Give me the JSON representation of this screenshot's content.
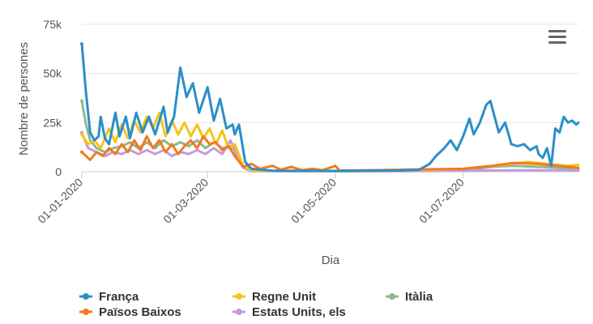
{
  "chart_data": {
    "type": "line",
    "xlabel": "Dia",
    "ylabel": "Nombre de persones",
    "x_start": "2020-01-01",
    "x_end": "2020-08-25",
    "ylim": [
      0,
      75000
    ],
    "y_ticks": [
      {
        "value": 0,
        "label": "0"
      },
      {
        "value": 25000,
        "label": "25k"
      },
      {
        "value": 50000,
        "label": "50k"
      },
      {
        "value": 75000,
        "label": "75k"
      }
    ],
    "x_ticks": [
      {
        "date": "2020-01-01",
        "label": "01-01-2020"
      },
      {
        "date": "2020-03-01",
        "label": "01-03-2020"
      },
      {
        "date": "2020-05-01",
        "label": "01-05-2020"
      },
      {
        "date": "2020-07-01",
        "label": "01-07-2020"
      }
    ],
    "grid": "horizontal",
    "legend_position": "bottom",
    "series": [
      {
        "name": "Itàlia",
        "color": "#8db88e",
        "points": [
          [
            "2020-01-01",
            36000
          ],
          [
            "2020-01-03",
            24000
          ],
          [
            "2020-01-05",
            16000
          ],
          [
            "2020-01-08",
            12000
          ],
          [
            "2020-01-12",
            10000
          ],
          [
            "2020-01-16",
            12000
          ],
          [
            "2020-01-20",
            13000
          ],
          [
            "2020-01-24",
            15000
          ],
          [
            "2020-01-28",
            12000
          ],
          [
            "2020-02-01",
            15000
          ],
          [
            "2020-02-05",
            12000
          ],
          [
            "2020-02-09",
            16000
          ],
          [
            "2020-02-13",
            13000
          ],
          [
            "2020-02-17",
            15000
          ],
          [
            "2020-02-21",
            13000
          ],
          [
            "2020-02-25",
            16000
          ],
          [
            "2020-02-29",
            12000
          ],
          [
            "2020-03-04",
            15000
          ],
          [
            "2020-03-08",
            12000
          ],
          [
            "2020-03-12",
            13000
          ],
          [
            "2020-03-15",
            10000
          ],
          [
            "2020-03-18",
            3000
          ],
          [
            "2020-03-22",
            800
          ],
          [
            "2020-04-01",
            400
          ],
          [
            "2020-05-01",
            300
          ],
          [
            "2020-06-01",
            500
          ],
          [
            "2020-06-20",
            700
          ],
          [
            "2020-07-05",
            1200
          ],
          [
            "2020-07-15",
            2500
          ],
          [
            "2020-07-25",
            3000
          ],
          [
            "2020-08-05",
            2500
          ],
          [
            "2020-08-15",
            2000
          ],
          [
            "2020-08-25",
            1500
          ]
        ]
      },
      {
        "name": "Estats Units, els",
        "color": "#c49ae0",
        "points": [
          [
            "2020-01-01",
            20000
          ],
          [
            "2020-01-04",
            12000
          ],
          [
            "2020-01-08",
            10000
          ],
          [
            "2020-01-12",
            8000
          ],
          [
            "2020-01-16",
            10000
          ],
          [
            "2020-01-20",
            9000
          ],
          [
            "2020-01-24",
            11000
          ],
          [
            "2020-01-28",
            9000
          ],
          [
            "2020-02-01",
            11000
          ],
          [
            "2020-02-05",
            9000
          ],
          [
            "2020-02-09",
            11000
          ],
          [
            "2020-02-13",
            8000
          ],
          [
            "2020-02-17",
            10000
          ],
          [
            "2020-02-21",
            9000
          ],
          [
            "2020-02-25",
            11000
          ],
          [
            "2020-02-29",
            9000
          ],
          [
            "2020-03-04",
            12000
          ],
          [
            "2020-03-08",
            9000
          ],
          [
            "2020-03-12",
            16000
          ],
          [
            "2020-03-15",
            8000
          ],
          [
            "2020-03-18",
            2000
          ],
          [
            "2020-03-22",
            300
          ],
          [
            "2020-05-01",
            200
          ],
          [
            "2020-06-01",
            300
          ],
          [
            "2020-07-01",
            500
          ],
          [
            "2020-08-01",
            800
          ],
          [
            "2020-08-25",
            600
          ]
        ]
      },
      {
        "name": "Regne Unit",
        "color": "#f5c518",
        "points": [
          [
            "2020-01-01",
            19000
          ],
          [
            "2020-01-04",
            14000
          ],
          [
            "2020-01-07",
            16000
          ],
          [
            "2020-01-10",
            12000
          ],
          [
            "2020-01-14",
            22000
          ],
          [
            "2020-01-17",
            15000
          ],
          [
            "2020-01-20",
            24000
          ],
          [
            "2020-01-23",
            17000
          ],
          [
            "2020-01-26",
            26000
          ],
          [
            "2020-01-29",
            20000
          ],
          [
            "2020-02-01",
            28000
          ],
          [
            "2020-02-04",
            22000
          ],
          [
            "2020-02-07",
            30000
          ],
          [
            "2020-02-10",
            18000
          ],
          [
            "2020-02-13",
            26000
          ],
          [
            "2020-02-16",
            19000
          ],
          [
            "2020-02-19",
            25000
          ],
          [
            "2020-02-22",
            18000
          ],
          [
            "2020-02-25",
            24000
          ],
          [
            "2020-02-28",
            17000
          ],
          [
            "2020-03-02",
            22000
          ],
          [
            "2020-03-05",
            14000
          ],
          [
            "2020-03-08",
            21000
          ],
          [
            "2020-03-11",
            12000
          ],
          [
            "2020-03-14",
            14000
          ],
          [
            "2020-03-18",
            3000
          ],
          [
            "2020-03-22",
            600
          ],
          [
            "2020-05-01",
            300
          ],
          [
            "2020-06-01",
            600
          ],
          [
            "2020-07-01",
            1500
          ],
          [
            "2020-07-20",
            3500
          ],
          [
            "2020-08-01",
            5000
          ],
          [
            "2020-08-10",
            4000
          ],
          [
            "2020-08-20",
            3000
          ],
          [
            "2020-08-25",
            3500
          ]
        ]
      },
      {
        "name": "Països Baixos",
        "color": "#f07a22",
        "points": [
          [
            "2020-01-01",
            10000
          ],
          [
            "2020-01-03",
            8000
          ],
          [
            "2020-01-05",
            6000
          ],
          [
            "2020-01-08",
            10000
          ],
          [
            "2020-01-11",
            8000
          ],
          [
            "2020-01-14",
            12000
          ],
          [
            "2020-01-17",
            9000
          ],
          [
            "2020-01-20",
            14000
          ],
          [
            "2020-01-23",
            10000
          ],
          [
            "2020-01-26",
            16000
          ],
          [
            "2020-01-29",
            11000
          ],
          [
            "2020-02-01",
            18000
          ],
          [
            "2020-02-04",
            12000
          ],
          [
            "2020-02-07",
            16000
          ],
          [
            "2020-02-10",
            10000
          ],
          [
            "2020-02-13",
            14000
          ],
          [
            "2020-02-16",
            9000
          ],
          [
            "2020-02-19",
            13000
          ],
          [
            "2020-02-22",
            16000
          ],
          [
            "2020-02-25",
            12000
          ],
          [
            "2020-02-28",
            18000
          ],
          [
            "2020-03-02",
            14000
          ],
          [
            "2020-03-05",
            15000
          ],
          [
            "2020-03-08",
            11000
          ],
          [
            "2020-03-11",
            13000
          ],
          [
            "2020-03-14",
            8000
          ],
          [
            "2020-03-18",
            2500
          ],
          [
            "2020-03-22",
            4000
          ],
          [
            "2020-03-26",
            1500
          ],
          [
            "2020-04-01",
            3000
          ],
          [
            "2020-04-05",
            1000
          ],
          [
            "2020-04-10",
            2500
          ],
          [
            "2020-04-15",
            800
          ],
          [
            "2020-04-20",
            1500
          ],
          [
            "2020-04-25",
            800
          ],
          [
            "2020-05-01",
            3000
          ],
          [
            "2020-05-03",
            600
          ],
          [
            "2020-05-20",
            800
          ],
          [
            "2020-06-10",
            1200
          ],
          [
            "2020-07-01",
            1500
          ],
          [
            "2020-07-15",
            3000
          ],
          [
            "2020-07-25",
            4500
          ],
          [
            "2020-08-05",
            4000
          ],
          [
            "2020-08-15",
            3000
          ],
          [
            "2020-08-25",
            2000
          ]
        ]
      },
      {
        "name": "França",
        "color": "#2b8fc7",
        "points": [
          [
            "2020-01-01",
            65000
          ],
          [
            "2020-01-03",
            40000
          ],
          [
            "2020-01-05",
            20000
          ],
          [
            "2020-01-07",
            16000
          ],
          [
            "2020-01-09",
            18000
          ],
          [
            "2020-01-10",
            28000
          ],
          [
            "2020-01-12",
            17000
          ],
          [
            "2020-01-14",
            14000
          ],
          [
            "2020-01-17",
            30000
          ],
          [
            "2020-01-19",
            18000
          ],
          [
            "2020-01-22",
            28000
          ],
          [
            "2020-01-24",
            17000
          ],
          [
            "2020-01-27",
            30000
          ],
          [
            "2020-01-30",
            20000
          ],
          [
            "2020-02-02",
            28000
          ],
          [
            "2020-02-05",
            19000
          ],
          [
            "2020-02-09",
            33000
          ],
          [
            "2020-02-11",
            20000
          ],
          [
            "2020-02-14",
            28000
          ],
          [
            "2020-02-17",
            53000
          ],
          [
            "2020-02-20",
            38000
          ],
          [
            "2020-02-23",
            45000
          ],
          [
            "2020-02-26",
            30000
          ],
          [
            "2020-03-01",
            43000
          ],
          [
            "2020-03-04",
            26000
          ],
          [
            "2020-03-07",
            37000
          ],
          [
            "2020-03-10",
            22000
          ],
          [
            "2020-03-13",
            24000
          ],
          [
            "2020-03-14",
            19000
          ],
          [
            "2020-03-16",
            24000
          ],
          [
            "2020-03-19",
            5000
          ],
          [
            "2020-03-22",
            1500
          ],
          [
            "2020-04-01",
            500
          ],
          [
            "2020-05-01",
            400
          ],
          [
            "2020-06-01",
            600
          ],
          [
            "2020-06-10",
            1000
          ],
          [
            "2020-06-15",
            4000
          ],
          [
            "2020-06-18",
            8000
          ],
          [
            "2020-06-22",
            12000
          ],
          [
            "2020-06-25",
            16000
          ],
          [
            "2020-06-28",
            11000
          ],
          [
            "2020-07-01",
            18000
          ],
          [
            "2020-07-04",
            27000
          ],
          [
            "2020-07-06",
            19000
          ],
          [
            "2020-07-09",
            25000
          ],
          [
            "2020-07-12",
            34000
          ],
          [
            "2020-07-14",
            36000
          ],
          [
            "2020-07-16",
            28000
          ],
          [
            "2020-07-18",
            20000
          ],
          [
            "2020-07-21",
            25000
          ],
          [
            "2020-07-24",
            14000
          ],
          [
            "2020-07-27",
            13000
          ],
          [
            "2020-07-30",
            14000
          ],
          [
            "2020-08-02",
            11000
          ],
          [
            "2020-08-05",
            13000
          ],
          [
            "2020-08-06",
            9000
          ],
          [
            "2020-08-08",
            7000
          ],
          [
            "2020-08-10",
            12000
          ],
          [
            "2020-08-12",
            3000
          ],
          [
            "2020-08-14",
            22000
          ],
          [
            "2020-08-16",
            20000
          ],
          [
            "2020-08-18",
            28000
          ],
          [
            "2020-08-20",
            25000
          ],
          [
            "2020-08-22",
            26000
          ],
          [
            "2020-08-24",
            24000
          ],
          [
            "2020-08-25",
            25000
          ]
        ]
      }
    ],
    "legend": [
      {
        "name": "França",
        "color": "#2b8fc7"
      },
      {
        "name": "Regne Unit",
        "color": "#f5c518"
      },
      {
        "name": "Itàlia",
        "color": "#8db88e"
      },
      {
        "name": "Països Baixos",
        "color": "#f07a22"
      },
      {
        "name": "Estats Units, els",
        "color": "#c49ae0"
      }
    ]
  },
  "menu": {
    "icon": "hamburger-menu-icon"
  }
}
